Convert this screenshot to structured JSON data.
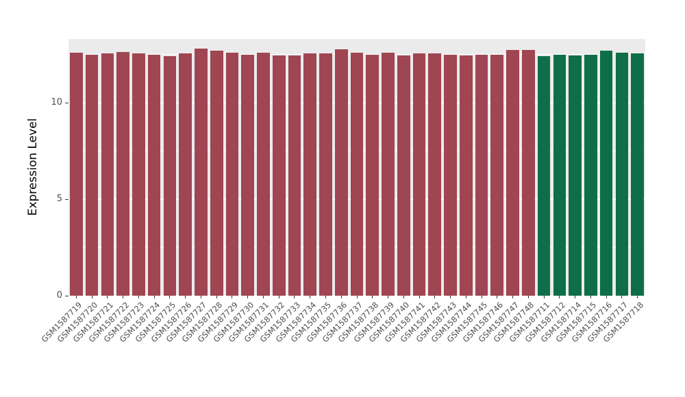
{
  "chart_data": {
    "type": "bar",
    "title": "",
    "xlabel": "",
    "ylabel": "Expression Level",
    "ylim": [
      0,
      13.3
    ],
    "y_ticks": [
      0,
      5,
      10
    ],
    "y_minor_ticks": [
      2.5,
      7.5,
      12.5
    ],
    "grid": true,
    "legend_position": "none",
    "panel_background": "#EBEBEB",
    "gridline_color": "#FFFFFF",
    "colors": {
      "group1": "#A04552",
      "group2": "#0E6E48"
    },
    "bars": [
      {
        "label": "GSM1587719",
        "value": 12.6,
        "group": "group1"
      },
      {
        "label": "GSM1587720",
        "value": 12.5,
        "group": "group1"
      },
      {
        "label": "GSM1587721",
        "value": 12.55,
        "group": "group1"
      },
      {
        "label": "GSM1587722",
        "value": 12.62,
        "group": "group1"
      },
      {
        "label": "GSM1587723",
        "value": 12.55,
        "group": "group1"
      },
      {
        "label": "GSM1587724",
        "value": 12.5,
        "group": "group1"
      },
      {
        "label": "GSM1587725",
        "value": 12.4,
        "group": "group1"
      },
      {
        "label": "GSM1587726",
        "value": 12.55,
        "group": "group1"
      },
      {
        "label": "GSM1587727",
        "value": 12.82,
        "group": "group1"
      },
      {
        "label": "GSM1587728",
        "value": 12.7,
        "group": "group1"
      },
      {
        "label": "GSM1587729",
        "value": 12.58,
        "group": "group1"
      },
      {
        "label": "GSM1587730",
        "value": 12.5,
        "group": "group1"
      },
      {
        "label": "GSM1587731",
        "value": 12.6,
        "group": "group1"
      },
      {
        "label": "GSM1587732",
        "value": 12.45,
        "group": "group1"
      },
      {
        "label": "GSM1587733",
        "value": 12.45,
        "group": "group1"
      },
      {
        "label": "GSM1587734",
        "value": 12.55,
        "group": "group1"
      },
      {
        "label": "GSM1587735",
        "value": 12.55,
        "group": "group1"
      },
      {
        "label": "GSM1587736",
        "value": 12.78,
        "group": "group1"
      },
      {
        "label": "GSM1587737",
        "value": 12.58,
        "group": "group1"
      },
      {
        "label": "GSM1587738",
        "value": 12.48,
        "group": "group1"
      },
      {
        "label": "GSM1587739",
        "value": 12.6,
        "group": "group1"
      },
      {
        "label": "GSM1587740",
        "value": 12.45,
        "group": "group1"
      },
      {
        "label": "GSM1587741",
        "value": 12.55,
        "group": "group1"
      },
      {
        "label": "GSM1587742",
        "value": 12.55,
        "group": "group1"
      },
      {
        "label": "GSM1587743",
        "value": 12.5,
        "group": "group1"
      },
      {
        "label": "GSM1587744",
        "value": 12.45,
        "group": "group1"
      },
      {
        "label": "GSM1587745",
        "value": 12.48,
        "group": "group1"
      },
      {
        "label": "GSM1587746",
        "value": 12.5,
        "group": "group1"
      },
      {
        "label": "GSM1587747",
        "value": 12.72,
        "group": "group1"
      },
      {
        "label": "GSM1587748",
        "value": 12.75,
        "group": "group1"
      },
      {
        "label": "GSM1587711",
        "value": 12.4,
        "group": "group2"
      },
      {
        "label": "GSM1587712",
        "value": 12.48,
        "group": "group2"
      },
      {
        "label": "GSM1587714",
        "value": 12.45,
        "group": "group2"
      },
      {
        "label": "GSM1587715",
        "value": 12.5,
        "group": "group2"
      },
      {
        "label": "GSM1587716",
        "value": 12.68,
        "group": "group2"
      },
      {
        "label": "GSM1587717",
        "value": 12.6,
        "group": "group2"
      },
      {
        "label": "GSM1587718",
        "value": 12.55,
        "group": "group2"
      }
    ]
  }
}
